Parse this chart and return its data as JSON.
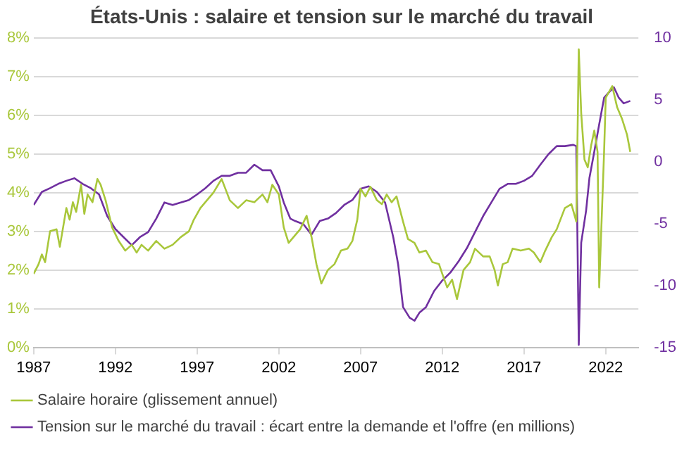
{
  "chart_data": {
    "type": "line",
    "title": "États-Unis : salaire et tension sur le marché du travail",
    "xlim": [
      1987,
      2024
    ],
    "xticks": [
      1987,
      1992,
      1997,
      2002,
      2007,
      2012,
      2017,
      2022
    ],
    "ylim": [
      0,
      8
    ],
    "yticks": [
      {
        "value": 0,
        "label": "0%"
      },
      {
        "value": 1,
        "label": "1%"
      },
      {
        "value": 2,
        "label": "2%"
      },
      {
        "value": 3,
        "label": "3%"
      },
      {
        "value": 4,
        "label": "4%"
      },
      {
        "value": 5,
        "label": "5%"
      },
      {
        "value": 6,
        "label": "6%"
      },
      {
        "value": 7,
        "label": "7%"
      },
      {
        "value": 8,
        "label": "8%"
      }
    ],
    "y2lim": [
      -15,
      10
    ],
    "y2ticks": [
      -15,
      -10,
      -5,
      0,
      5,
      10
    ],
    "grid": "y",
    "legend": "bottom",
    "marker": "none",
    "line_style": "solid",
    "series": [
      {
        "name": "Salaire horaire (glissement annuel)",
        "color": "#a9c73b",
        "x": [
          1987.0,
          1987.3,
          1987.5,
          1987.7,
          1988.0,
          1988.4,
          1988.6,
          1989.0,
          1989.2,
          1989.4,
          1989.6,
          1989.9,
          1990.1,
          1990.3,
          1990.6,
          1990.9,
          1991.1,
          1991.4,
          1991.8,
          1992.2,
          1992.6,
          1993.0,
          1993.3,
          1993.6,
          1994.0,
          1994.5,
          1995.0,
          1995.5,
          1996.0,
          1996.5,
          1996.8,
          1997.2,
          1997.6,
          1998.0,
          1998.5,
          1999.0,
          1999.5,
          2000.0,
          2000.5,
          2001.0,
          2001.3,
          2001.6,
          2002.0,
          2002.3,
          2002.6,
          2003.0,
          2003.3,
          2003.7,
          2004.0,
          2004.3,
          2004.6,
          2005.0,
          2005.4,
          2005.8,
          2006.2,
          2006.5,
          2006.8,
          2007.0,
          2007.3,
          2007.6,
          2008.0,
          2008.3,
          2008.6,
          2008.9,
          2009.2,
          2009.6,
          2009.9,
          2010.3,
          2010.6,
          2011.0,
          2011.4,
          2011.8,
          2012.0,
          2012.3,
          2012.6,
          2012.9,
          2013.3,
          2013.7,
          2014.0,
          2014.5,
          2014.9,
          2015.2,
          2015.4,
          2015.7,
          2016.0,
          2016.3,
          2016.8,
          2017.3,
          2017.6,
          2018.0,
          2018.3,
          2018.7,
          2019.0,
          2019.5,
          2019.9,
          2020.1,
          2020.2,
          2020.35,
          2020.5,
          2020.7,
          2020.9,
          2021.1,
          2021.3,
          2021.5,
          2021.6,
          2021.9,
          2022.0,
          2022.2,
          2022.4,
          2022.7,
          2023.0,
          2023.3,
          2023.5
        ],
        "values": [
          1.9,
          2.15,
          2.4,
          2.2,
          3.0,
          3.05,
          2.6,
          3.6,
          3.3,
          3.75,
          3.5,
          4.2,
          3.45,
          3.95,
          3.75,
          4.35,
          4.2,
          3.8,
          3.1,
          2.75,
          2.5,
          2.65,
          2.45,
          2.65,
          2.5,
          2.75,
          2.55,
          2.65,
          2.85,
          3.0,
          3.3,
          3.6,
          3.8,
          4.0,
          4.35,
          3.8,
          3.6,
          3.8,
          3.75,
          3.95,
          3.75,
          4.2,
          3.95,
          3.1,
          2.7,
          2.9,
          3.05,
          3.4,
          2.85,
          2.15,
          1.65,
          2.0,
          2.15,
          2.5,
          2.55,
          2.75,
          3.3,
          4.1,
          3.9,
          4.15,
          3.8,
          3.7,
          3.95,
          3.75,
          3.9,
          3.25,
          2.8,
          2.7,
          2.45,
          2.5,
          2.2,
          2.15,
          1.9,
          1.55,
          1.75,
          1.25,
          2.0,
          2.2,
          2.55,
          2.35,
          2.35,
          2.0,
          1.6,
          2.15,
          2.2,
          2.55,
          2.5,
          2.55,
          2.45,
          2.2,
          2.5,
          2.85,
          3.05,
          3.6,
          3.7,
          3.4,
          3.25,
          7.7,
          6.05,
          4.85,
          4.65,
          5.2,
          5.6,
          5.05,
          1.55,
          5.05,
          6.45,
          6.6,
          6.75,
          6.2,
          5.9,
          5.5,
          5.05
        ]
      },
      {
        "name": "Tension sur le marché du travail : écart entre la demande et l'offre (en millions)",
        "color": "#7030a0",
        "axis": "y2",
        "x": [
          1987.0,
          1987.5,
          1988.0,
          1988.5,
          1989.0,
          1989.5,
          1990.0,
          1990.5,
          1991.0,
          1991.5,
          1992.0,
          1992.5,
          1993.0,
          1993.5,
          1994.0,
          1994.5,
          1995.0,
          1995.5,
          1996.0,
          1996.5,
          1997.0,
          1997.5,
          1998.0,
          1998.5,
          1999.0,
          1999.5,
          2000.0,
          2000.5,
          2001.0,
          2001.5,
          2002.0,
          2002.3,
          2002.7,
          2003.0,
          2003.5,
          2004.0,
          2004.5,
          2005.0,
          2005.5,
          2006.0,
          2006.5,
          2007.0,
          2007.5,
          2008.0,
          2008.5,
          2009.0,
          2009.3,
          2009.6,
          2010.0,
          2010.3,
          2010.6,
          2011.0,
          2011.5,
          2012.0,
          2012.5,
          2013.0,
          2013.5,
          2014.0,
          2014.5,
          2015.0,
          2015.5,
          2016.0,
          2016.5,
          2017.0,
          2017.5,
          2018.0,
          2018.5,
          2019.0,
          2019.5,
          2020.0,
          2020.2,
          2020.35,
          2020.5,
          2020.8,
          2021.0,
          2021.3,
          2021.6,
          2021.9,
          2022.2,
          2022.5,
          2022.8,
          2023.1,
          2023.5
        ],
        "values": [
          -3.5,
          -2.45,
          -2.15,
          -1.8,
          -1.55,
          -1.35,
          -1.8,
          -2.15,
          -2.65,
          -4.4,
          -5.45,
          -6.1,
          -6.75,
          -6.1,
          -5.7,
          -4.6,
          -3.3,
          -3.5,
          -3.3,
          -3.1,
          -2.65,
          -2.15,
          -1.55,
          -1.15,
          -1.15,
          -0.9,
          -0.9,
          -0.25,
          -0.7,
          -0.7,
          -2.0,
          -3.3,
          -4.6,
          -4.8,
          -5.05,
          -5.9,
          -4.8,
          -4.6,
          -4.15,
          -3.5,
          -3.1,
          -2.2,
          -2.0,
          -2.45,
          -3.3,
          -6.1,
          -8.3,
          -11.75,
          -12.6,
          -12.85,
          -12.2,
          -11.75,
          -10.45,
          -9.6,
          -8.95,
          -8.05,
          -7.0,
          -5.7,
          -4.4,
          -3.3,
          -2.2,
          -1.8,
          -1.8,
          -1.55,
          -1.15,
          -0.25,
          0.6,
          1.25,
          1.25,
          1.35,
          1.25,
          -14.8,
          -6.55,
          -3.95,
          -1.35,
          0.8,
          3.0,
          5.15,
          5.6,
          6.0,
          5.15,
          4.7,
          4.9
        ]
      }
    ]
  }
}
